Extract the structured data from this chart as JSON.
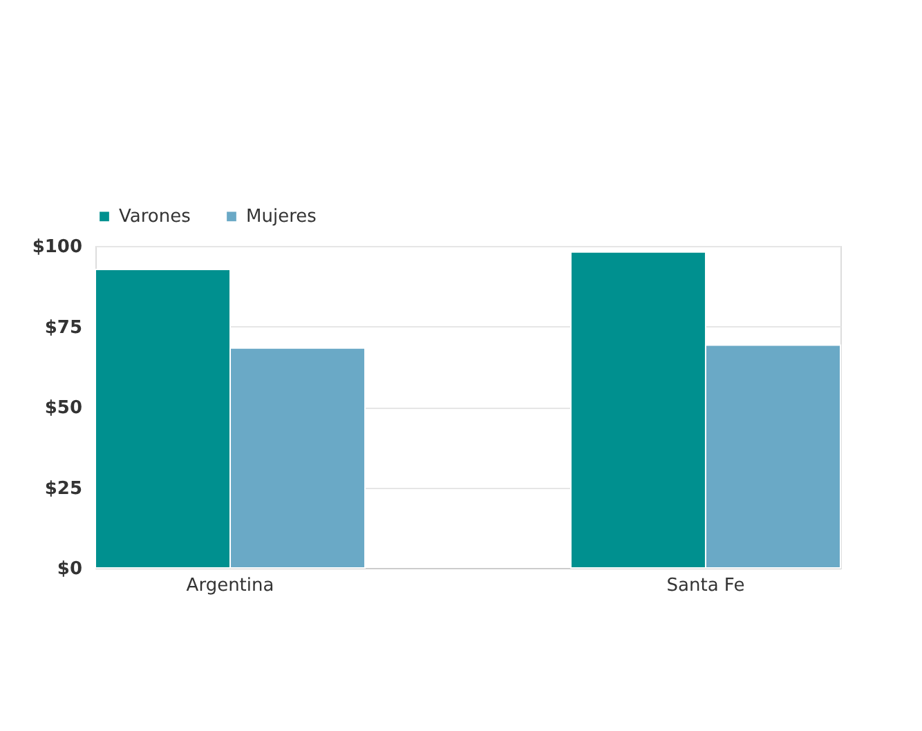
{
  "chart_data": {
    "type": "bar",
    "categories": [
      "Argentina",
      "Santa Fe"
    ],
    "series": [
      {
        "name": "Varones",
        "color": "#00908f",
        "values": [
          92.7,
          98.1
        ]
      },
      {
        "name": "Mujeres",
        "color": "#6aa9c6",
        "values": [
          68.3,
          69.2
        ]
      }
    ],
    "ylim": [
      0,
      100
    ],
    "yticks": [
      {
        "value": 0,
        "label": "$0"
      },
      {
        "value": 25,
        "label": "$25"
      },
      {
        "value": 50,
        "label": "$50"
      },
      {
        "value": 75,
        "label": "$75"
      },
      {
        "value": 100,
        "label": "$100"
      }
    ],
    "grid": "y",
    "legend": "top"
  }
}
